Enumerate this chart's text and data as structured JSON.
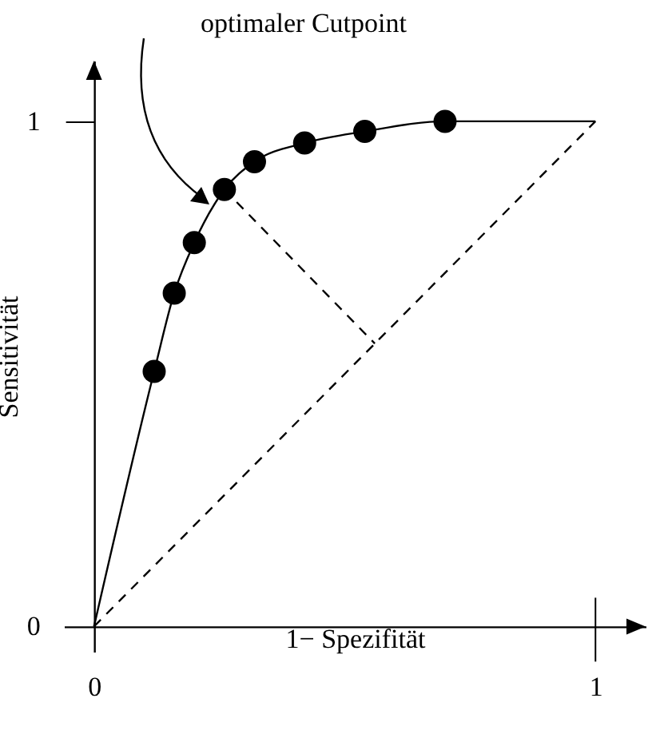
{
  "chart_data": {
    "type": "scatter",
    "xlabel": "1− Spezifität",
    "ylabel": "Sensitivität",
    "xlim": [
      -0.06,
      1.1
    ],
    "ylim": [
      -0.05,
      1.12
    ],
    "xticks": [
      0,
      1
    ],
    "yticks": [
      0,
      1
    ],
    "grid": false,
    "annotations": [
      "optimaler Cutpoint"
    ],
    "series": [
      {
        "type": "line",
        "color": "#000000",
        "line_style": "solid",
        "marker": "none",
        "x": [
          0,
          0.12,
          0.16,
          0.2,
          0.26,
          0.32,
          0.42,
          0.54,
          0.7,
          1
        ],
        "values": [
          0,
          0.505,
          0.66,
          0.76,
          0.865,
          0.92,
          0.957,
          0.98,
          1.0,
          1
        ]
      },
      {
        "color": "#000000",
        "marker": "circle",
        "x": [
          0.12,
          0.16,
          0.2,
          0.26,
          0.32,
          0.42,
          0.54,
          0.7
        ],
        "values": [
          0.505,
          0.66,
          0.76,
          0.865,
          0.92,
          0.957,
          0.98,
          1.0
        ]
      },
      {
        "type": "line",
        "color": "#000000",
        "line_style": "dashed",
        "marker": "none",
        "x": [
          0,
          1
        ],
        "values": [
          0,
          1
        ]
      },
      {
        "type": "line",
        "color": "#000000",
        "line_style": "dashed",
        "marker": "none",
        "x": [
          0.26,
          0.56
        ],
        "values": [
          0.865,
          0.56
        ]
      }
    ]
  }
}
